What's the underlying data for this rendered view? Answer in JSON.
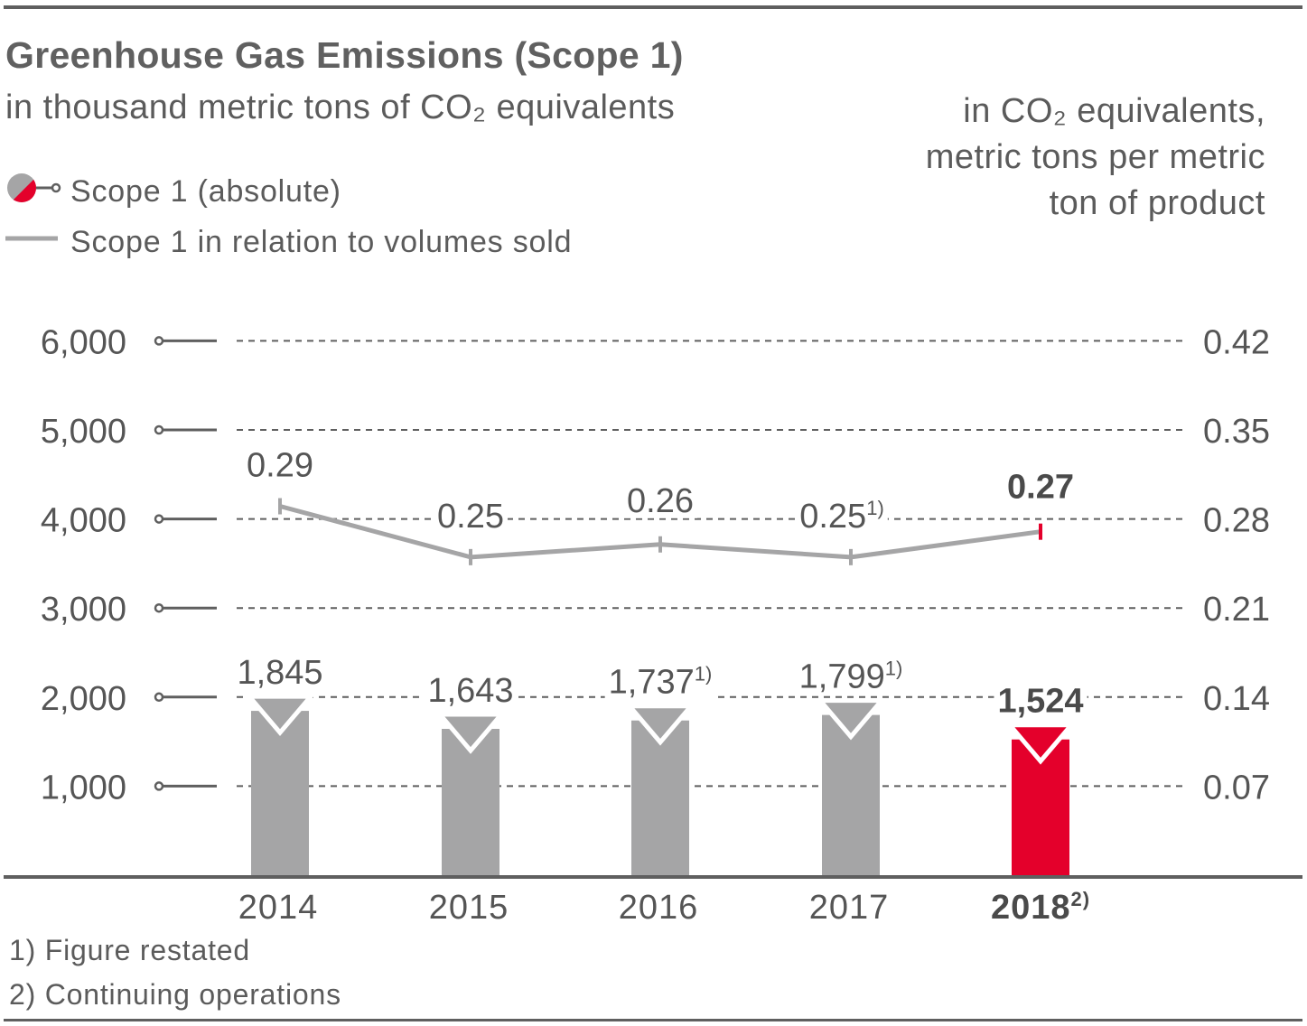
{
  "header": {
    "title": "Greenhouse Gas Emissions (Scope 1)",
    "subtitle": "in thousand metric tons of CO₂ equivalents",
    "right_unit_line1": "in CO₂ equivalents,",
    "right_unit_line2": "metric tons per metric",
    "right_unit_line3": "ton of product"
  },
  "legend": {
    "bars_label": "Scope 1 (absolute)",
    "line_label": "Scope 1 in relation to volumes sold"
  },
  "footnotes": {
    "note1": "1) Figure restated",
    "note2": "2) Continuing operations"
  },
  "colors": {
    "bar": "#a5a5a6",
    "highlight": "#e4002b",
    "line": "#a5a5a6",
    "axis": "#5f5f5f",
    "text": "#555555"
  },
  "chart_data": {
    "type": "bar",
    "categories": [
      "2014",
      "2015",
      "2016",
      "2017",
      "2018"
    ],
    "category_notes": [
      "",
      "",
      "",
      "",
      "2)"
    ],
    "highlight_index": 4,
    "series": [
      {
        "name": "Scope 1 (absolute)",
        "type": "bar",
        "axis": "left",
        "values": [
          1845,
          1643,
          1737,
          1799,
          1524
        ],
        "labels": [
          "1,845",
          "1,643",
          "1,737",
          "1,799",
          "1,524"
        ],
        "notes": [
          "",
          "",
          "1)",
          "1)",
          ""
        ]
      },
      {
        "name": "Scope 1 in relation to volumes sold",
        "type": "line",
        "axis": "right",
        "values": [
          0.29,
          0.25,
          0.26,
          0.25,
          0.27
        ],
        "labels": [
          "0.29",
          "0.25",
          "0.26",
          "0.25",
          "0.27"
        ],
        "notes": [
          "",
          "",
          "",
          "1)",
          ""
        ]
      }
    ],
    "y_left": {
      "ylim": [
        0,
        6000
      ],
      "ticks": [
        "1,000",
        "2,000",
        "3,000",
        "4,000",
        "5,000",
        "6,000"
      ]
    },
    "y_right": {
      "ylim": [
        0,
        0.42
      ],
      "ticks": [
        "0.07",
        "0.14",
        "0.21",
        "0.28",
        "0.35",
        "0.42"
      ]
    },
    "grid": true
  }
}
